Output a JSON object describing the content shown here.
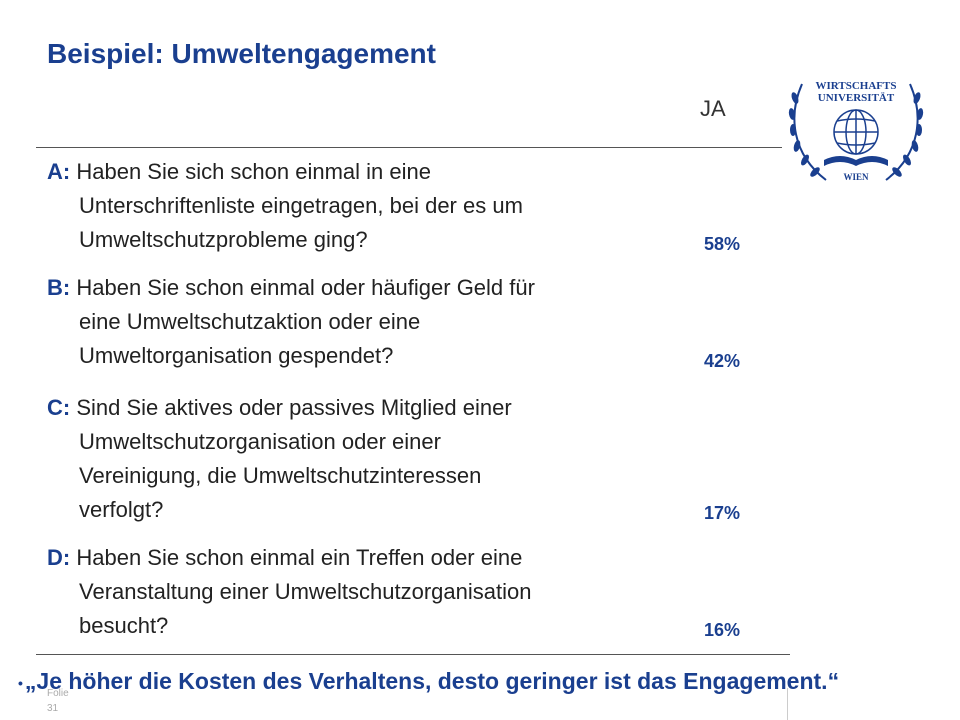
{
  "slide": {
    "title": "Beispiel: Umweltengagement",
    "column_header": "JA"
  },
  "questions": [
    {
      "letter": "A:",
      "lines": [
        "Haben Sie sich schon einmal in eine",
        "Unterschriftenliste eingetragen, bei der es um",
        "Umweltschutzprobleme ging?"
      ],
      "percent": "58%"
    },
    {
      "letter": "B:",
      "lines": [
        "Haben Sie schon einmal oder häufiger Geld für",
        "eine Umweltschutzaktion oder eine",
        "Umweltorganisation gespendet?"
      ],
      "percent": "42%"
    },
    {
      "letter": "C:",
      "lines": [
        "Sind Sie aktives oder passives Mitglied einer",
        "Umweltschutzorganisation oder einer",
        "Vereinigung, die Umweltschutzinteressen",
        "verfolgt?"
      ],
      "percent": "17%"
    },
    {
      "letter": "D:",
      "lines": [
        "Haben Sie schon einmal ein Treffen oder eine",
        "Veranstaltung einer Umweltschutzorganisation",
        "besucht?"
      ],
      "percent": "16%"
    }
  ],
  "logo": {
    "top_text": "WIRTSCHAFTS",
    "mid_text": "UNIVERSITÄT",
    "bottom_text": "WIEN"
  },
  "footer": {
    "bullet": "•",
    "quote": "„Je höher die Kosten des Verhaltens, desto geringer ist das Engagement.“",
    "folie_label": "Folie",
    "folie_number": "31"
  },
  "colors": {
    "accent": "#1a3f8f"
  }
}
